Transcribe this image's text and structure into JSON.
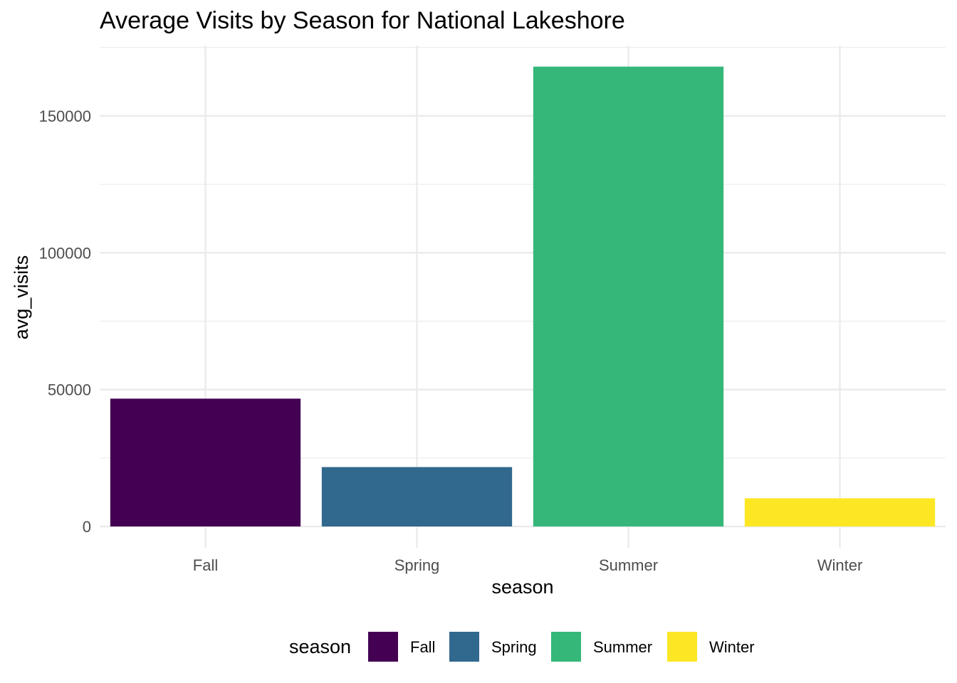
{
  "chart_data": {
    "type": "bar",
    "title": "Average Visits by Season for National Lakeshore",
    "xlabel": "season",
    "ylabel": "avg_visits",
    "categories": [
      "Fall",
      "Spring",
      "Summer",
      "Winter"
    ],
    "values": [
      46700,
      21700,
      168000,
      10300
    ],
    "colors": [
      "#440154",
      "#31688E",
      "#35B779",
      "#FDE725"
    ],
    "ylim": [
      0,
      175700
    ],
    "yticks": [
      0,
      50000,
      100000,
      150000
    ],
    "yticks_minor": [
      25000,
      75000,
      125000,
      175000
    ],
    "grid": true,
    "legend": {
      "title": "season",
      "position": "bottom",
      "entries": [
        "Fall",
        "Spring",
        "Summer",
        "Winter"
      ]
    }
  }
}
